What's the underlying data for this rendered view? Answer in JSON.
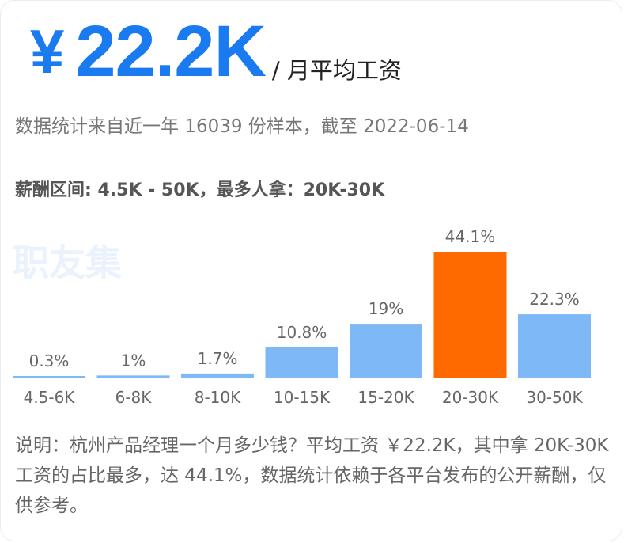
{
  "header": {
    "currency": "¥",
    "value": "22.2K",
    "unit": "/ 月平均工资"
  },
  "sample_text": "数据统计来自近一年 16039 份样本，截至 2022-06-14",
  "range_text": "薪酬区间: 4.5K - 50K，最多人拿：20K-30K",
  "watermark": "职友集",
  "colors": {
    "accent": "#1a7bf0",
    "bar": "#7fb8f7",
    "highlight": "#ff6a00"
  },
  "chart_data": {
    "type": "bar",
    "categories": [
      "4.5-6K",
      "6-8K",
      "8-10K",
      "10-15K",
      "15-20K",
      "20-30K",
      "30-50K"
    ],
    "values": [
      0.3,
      1,
      1.7,
      10.8,
      19,
      44.1,
      22.3
    ],
    "value_labels": [
      "0.3%",
      "1%",
      "1.7%",
      "10.8%",
      "19%",
      "44.1%",
      "22.3%"
    ],
    "highlight_index": 5,
    "ylim": [
      0,
      44.1
    ]
  },
  "note": "说明：杭州产品经理一个月多少钱？平均工资 ￥22.2K，其中拿 20K-30K 工资的占比最多，达 44.1%，数据统计依赖于各平台发布的公开薪酬，仅供参考。"
}
